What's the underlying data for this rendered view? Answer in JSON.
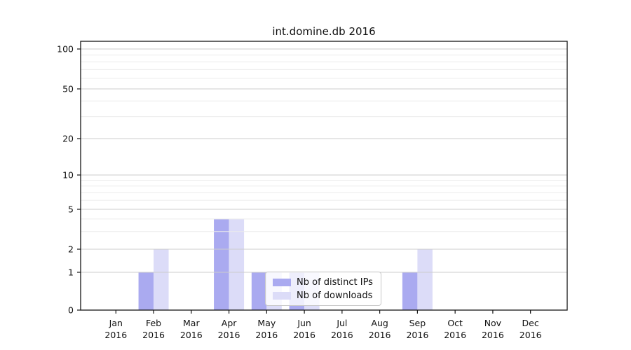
{
  "chart_data": {
    "type": "bar",
    "title": "int.domine.db 2016",
    "categories": [
      "Jan 2016",
      "Feb 2016",
      "Mar 2016",
      "Apr 2016",
      "May 2016",
      "Jun 2016",
      "Jul 2016",
      "Aug 2016",
      "Sep 2016",
      "Oct 2016",
      "Nov 2016",
      "Dec 2016"
    ],
    "series": [
      {
        "name": "Nb of distinct IPs",
        "color": "#aaaaf0",
        "values": [
          0,
          1,
          0,
          4,
          1,
          1,
          0,
          0,
          1,
          0,
          0,
          0
        ]
      },
      {
        "name": "Nb of downloads",
        "color": "#dcdcf8",
        "values": [
          0,
          2,
          0,
          4,
          1,
          1,
          0,
          0,
          2,
          0,
          0,
          0
        ]
      }
    ],
    "yscale": "symlog",
    "ylim": [
      0,
      100
    ],
    "yticks": [
      0,
      1,
      2,
      5,
      10,
      20,
      50,
      100
    ],
    "ytick_labels": [
      "0",
      "1",
      "2",
      "5",
      "10",
      "20",
      "50",
      "100"
    ],
    "minor_gridlines": [
      3,
      4,
      6,
      7,
      8,
      9,
      30,
      40,
      60,
      70,
      80,
      90
    ],
    "grid": true,
    "legend_position": "lower center",
    "colors": {
      "major_grid": "#cccccc",
      "minor_grid": "#ececec",
      "axis": "#151515",
      "background": "#ffffff"
    }
  }
}
